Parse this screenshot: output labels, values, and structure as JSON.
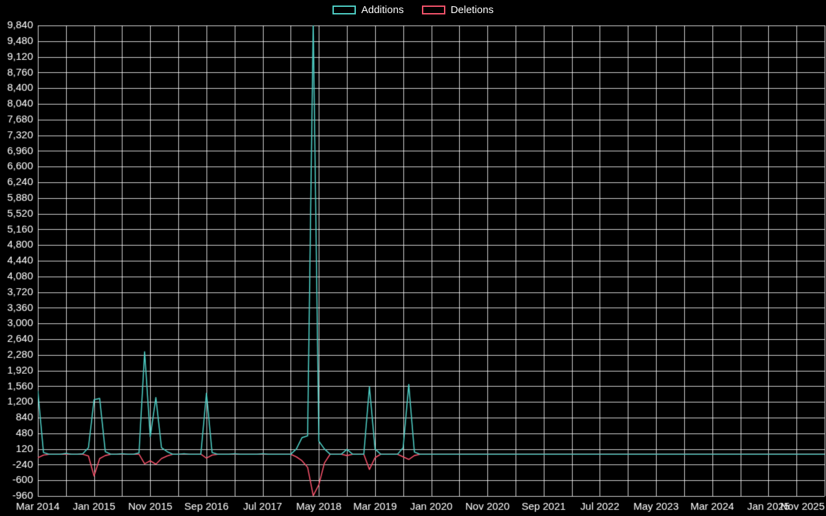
{
  "page": {
    "background": "#000000",
    "grid_color": "#ffffff",
    "text_color": "#ffffff"
  },
  "legend": {
    "position": "top-center",
    "items": [
      {
        "label": "Additions",
        "color": "#4ECDC4"
      },
      {
        "label": "Deletions",
        "color": "#F4536B"
      }
    ]
  },
  "chart_data": {
    "type": "line",
    "title": "",
    "xlabel": "",
    "ylabel": "",
    "grid": "on",
    "legend_position": "top-center",
    "ylim": [
      -960,
      9840
    ],
    "y_tick_step": 360,
    "y_ticks": [
      9840,
      9480,
      9120,
      8760,
      8400,
      8040,
      7680,
      7320,
      6960,
      6600,
      6240,
      5880,
      5520,
      5160,
      4800,
      4440,
      4080,
      3720,
      3360,
      3000,
      2640,
      2280,
      1920,
      1560,
      1200,
      840,
      480,
      120,
      -240,
      -600,
      -960
    ],
    "x_tick_labels": [
      "Mar 2014",
      "Jan 2015",
      "Nov 2015",
      "Sep 2016",
      "Jul 2017",
      "May 2018",
      "Mar 2019",
      "Jan 2020",
      "Nov 2020",
      "Sep 2021",
      "Jul 2022",
      "May 2023",
      "Mar 2024",
      "Jan 2025",
      "Nov 2025"
    ],
    "x_tick_month_step": 10,
    "x_grid_month_step": 5,
    "x_unit": "month",
    "x_range": [
      "Mar 2014",
      "Nov 2025"
    ],
    "months_total": 141,
    "series": [
      {
        "name": "Additions",
        "color": "#4ECDC4",
        "values": [
          1450,
          40,
          0,
          0,
          0,
          20,
          0,
          0,
          10,
          150,
          1250,
          1280,
          60,
          0,
          0,
          10,
          0,
          0,
          30,
          2350,
          400,
          1300,
          150,
          60,
          0,
          0,
          10,
          0,
          0,
          0,
          1400,
          40,
          0,
          0,
          0,
          10,
          0,
          0,
          0,
          0,
          10,
          0,
          0,
          0,
          0,
          0,
          120,
          380,
          420,
          9900,
          300,
          120,
          0,
          0,
          0,
          110,
          0,
          0,
          0,
          1550,
          120,
          0,
          0,
          0,
          0,
          150,
          1600,
          50,
          0,
          0,
          0,
          0,
          0,
          0,
          0,
          0,
          0,
          0,
          0,
          0,
          0,
          0,
          0,
          0,
          0,
          0,
          0,
          0,
          0,
          0,
          0,
          0,
          0,
          0,
          0,
          0,
          0,
          0,
          0,
          0,
          0,
          0,
          0,
          0,
          0,
          0,
          0,
          0,
          0,
          0,
          0,
          0,
          0,
          0,
          0,
          0,
          0,
          0,
          0,
          0,
          0,
          0,
          0,
          0,
          0,
          0,
          0,
          0,
          0,
          0,
          0,
          0,
          0,
          0,
          0,
          0,
          0,
          0,
          0,
          0,
          0
        ]
      },
      {
        "name": "Deletions",
        "color": "#F4536B",
        "values": [
          -80,
          -20,
          0,
          0,
          0,
          0,
          0,
          0,
          0,
          -40,
          -500,
          -100,
          -30,
          0,
          0,
          0,
          0,
          0,
          0,
          -220,
          -150,
          -230,
          -100,
          -40,
          0,
          0,
          0,
          0,
          0,
          0,
          -90,
          -20,
          0,
          0,
          0,
          0,
          0,
          0,
          0,
          0,
          0,
          0,
          0,
          0,
          0,
          0,
          -60,
          -150,
          -300,
          -950,
          -700,
          -200,
          0,
          0,
          0,
          -30,
          0,
          0,
          0,
          -350,
          -80,
          0,
          0,
          0,
          0,
          -60,
          -120,
          -30,
          0,
          0,
          0,
          0,
          0,
          0,
          0,
          0,
          0,
          0,
          0,
          0,
          0,
          0,
          0,
          0,
          0,
          0,
          0,
          0,
          0,
          0,
          0,
          0,
          0,
          0,
          0,
          0,
          0,
          0,
          0,
          0,
          0,
          0,
          0,
          0,
          0,
          0,
          0,
          0,
          0,
          0,
          0,
          0,
          0,
          0,
          0,
          0,
          0,
          0,
          0,
          0,
          0,
          0,
          0,
          0,
          0,
          0,
          0,
          0,
          0,
          0,
          0,
          0,
          0,
          0,
          0,
          0,
          0,
          0,
          0,
          0,
          0
        ]
      }
    ]
  }
}
